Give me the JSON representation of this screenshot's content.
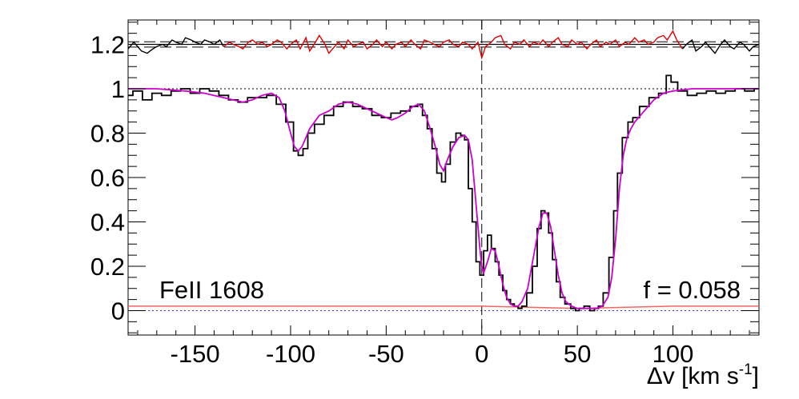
{
  "chart_data": {
    "type": "line",
    "title": "",
    "xlabel": "Δv [km s⁻¹]",
    "xlabel_main": "Δv [km s",
    "xlabel_sup": "-1",
    "xlabel_close": "]",
    "ylabel": "",
    "xlim": [
      -185,
      145
    ],
    "ylim": [
      -0.11,
      1.31
    ],
    "grid": false,
    "legend": "none",
    "x_ticks": [
      -150,
      -100,
      -50,
      0,
      50,
      100
    ],
    "x_tick_labels": [
      "-150",
      "-100",
      "-50",
      "0",
      "50",
      "100"
    ],
    "y_ticks": [
      0,
      0.2,
      0.4,
      0.6,
      0.8,
      1,
      1.2
    ],
    "y_tick_labels": [
      "0",
      "0.2",
      "0.4",
      "0.6",
      "0.8",
      "1",
      "1.2"
    ],
    "annotations": {
      "line_id": "FeII 1608",
      "fraction": "f = 0.058"
    },
    "reference_lines": {
      "continuum": 1.0,
      "zero": 0.0,
      "residual_center": 1.2,
      "residual_band": 0.012,
      "velocity_zero": 0
    },
    "colors": {
      "data": "#000000",
      "fit": "#cc00cc",
      "residual_in_fit": "#dd0000",
      "error": "#ee6666",
      "zero_line": "#3333cc"
    },
    "series": [
      {
        "key": "data",
        "x": [
          -185,
          -180,
          -175,
          -170,
          -165,
          -160,
          -155,
          -150,
          -145,
          -140,
          -135,
          -130,
          -125,
          -120,
          -115,
          -110,
          -105,
          -100,
          -97,
          -95,
          -92,
          -90,
          -85,
          -80,
          -75,
          -70,
          -65,
          -60,
          -55,
          -50,
          -45,
          -40,
          -35,
          -32,
          -30,
          -27,
          -25,
          -22,
          -20,
          -18,
          -15,
          -12,
          -10,
          -8,
          -6,
          -4,
          -2,
          0,
          2,
          4,
          6,
          8,
          10,
          12,
          14,
          16,
          18,
          20,
          22,
          25,
          28,
          30,
          32,
          34,
          36,
          38,
          40,
          42,
          45,
          48,
          50,
          52,
          55,
          58,
          60,
          62,
          65,
          68,
          70,
          72,
          75,
          78,
          80,
          85,
          90,
          95,
          98,
          100,
          105,
          110,
          115,
          120,
          125,
          130,
          135,
          140,
          145
        ],
        "y": [
          0.97,
          0.99,
          0.95,
          0.98,
          0.97,
          0.99,
          1.0,
          0.98,
          1.0,
          0.99,
          0.97,
          0.95,
          0.94,
          0.96,
          0.96,
          0.97,
          0.93,
          0.85,
          0.72,
          0.7,
          0.73,
          0.8,
          0.84,
          0.88,
          0.92,
          0.94,
          0.92,
          0.91,
          0.88,
          0.87,
          0.89,
          0.9,
          0.92,
          0.93,
          0.88,
          0.82,
          0.73,
          0.62,
          0.58,
          0.66,
          0.76,
          0.8,
          0.79,
          0.77,
          0.55,
          0.4,
          0.22,
          0.16,
          0.27,
          0.34,
          0.28,
          0.22,
          0.16,
          0.09,
          0.05,
          0.03,
          0.02,
          0.01,
          0.02,
          0.08,
          0.2,
          0.37,
          0.45,
          0.44,
          0.35,
          0.23,
          0.13,
          0.06,
          0.03,
          0.01,
          0.0,
          0.01,
          0.02,
          0.0,
          0.01,
          0.02,
          0.08,
          0.24,
          0.45,
          0.62,
          0.78,
          0.85,
          0.87,
          0.92,
          0.96,
          0.98,
          1.06,
          1.03,
          0.99,
          0.97,
          0.98,
          0.99,
          0.98,
          0.99,
          1.0,
          0.99,
          1.0
        ]
      },
      {
        "key": "fit",
        "x": [
          -185,
          -170,
          -155,
          -145,
          -135,
          -125,
          -120,
          -115,
          -110,
          -106,
          -103,
          -100,
          -98,
          -96,
          -94,
          -92,
          -90,
          -85,
          -80,
          -75,
          -70,
          -65,
          -60,
          -55,
          -50,
          -47,
          -44,
          -40,
          -36,
          -33,
          -30,
          -27,
          -24,
          -22,
          -20,
          -18,
          -15,
          -12,
          -9,
          -7,
          -5,
          -3,
          -1,
          0,
          1,
          3,
          5,
          7,
          9,
          11,
          13,
          15,
          17,
          19,
          21,
          24,
          27,
          30,
          32,
          34,
          36,
          38,
          40,
          42,
          44,
          47,
          50,
          53,
          56,
          60,
          63,
          66,
          68,
          70,
          72,
          74,
          76,
          78,
          80,
          85,
          90,
          95,
          100,
          110,
          125,
          145
        ],
        "y": [
          1.0,
          1.0,
          0.99,
          0.98,
          0.96,
          0.94,
          0.95,
          0.97,
          0.98,
          0.96,
          0.9,
          0.8,
          0.74,
          0.72,
          0.74,
          0.78,
          0.82,
          0.88,
          0.9,
          0.93,
          0.94,
          0.93,
          0.91,
          0.89,
          0.87,
          0.86,
          0.87,
          0.89,
          0.92,
          0.93,
          0.9,
          0.82,
          0.73,
          0.66,
          0.63,
          0.68,
          0.74,
          0.78,
          0.79,
          0.77,
          0.68,
          0.48,
          0.28,
          0.2,
          0.17,
          0.22,
          0.28,
          0.27,
          0.2,
          0.12,
          0.06,
          0.03,
          0.02,
          0.02,
          0.04,
          0.1,
          0.24,
          0.38,
          0.44,
          0.44,
          0.38,
          0.27,
          0.16,
          0.08,
          0.04,
          0.02,
          0.01,
          0.01,
          0.01,
          0.01,
          0.02,
          0.06,
          0.15,
          0.32,
          0.55,
          0.7,
          0.78,
          0.82,
          0.85,
          0.9,
          0.95,
          0.98,
          0.99,
          1.0,
          1.0,
          1.0
        ]
      },
      {
        "key": "error",
        "x": [
          -185,
          -100,
          0,
          50,
          100,
          145
        ],
        "y": [
          0.02,
          0.02,
          0.02,
          0.01,
          0.02,
          0.02
        ]
      },
      {
        "key": "residual",
        "x": [
          -185,
          -182,
          -178,
          -175,
          -172,
          -170,
          -167,
          -165,
          -162,
          -160,
          -157,
          -155,
          -152,
          -150,
          -147,
          -145,
          -142,
          -140,
          -137,
          -135,
          -132,
          -130,
          -127,
          -125,
          -122,
          -120,
          -117,
          -115,
          -112,
          -110,
          -107,
          -105,
          -102,
          -100,
          -97,
          -95,
          -92,
          -90,
          -87,
          -85,
          -82,
          -80,
          -77,
          -75,
          -72,
          -70,
          -67,
          -65,
          -62,
          -60,
          -57,
          -55,
          -52,
          -50,
          -47,
          -45,
          -42,
          -40,
          -37,
          -35,
          -32,
          -30,
          -27,
          -25,
          -22,
          -20,
          -17,
          -15,
          -12,
          -10,
          -7,
          -5,
          -2,
          0,
          2,
          5,
          7,
          10,
          12,
          15,
          17,
          20,
          22,
          25,
          27,
          30,
          32,
          35,
          37,
          40,
          42,
          45,
          47,
          50,
          52,
          55,
          57,
          60,
          62,
          65,
          67,
          70,
          72,
          75,
          77,
          80,
          82,
          85,
          87,
          90,
          92,
          95,
          97,
          100,
          102,
          105,
          107,
          110,
          112,
          115,
          117,
          120,
          122,
          125,
          127,
          130,
          132,
          135,
          137,
          140,
          142,
          145
        ],
        "y": [
          1.18,
          1.21,
          1.17,
          1.16,
          1.18,
          1.19,
          1.2,
          1.19,
          1.22,
          1.21,
          1.2,
          1.23,
          1.22,
          1.21,
          1.2,
          1.22,
          1.21,
          1.2,
          1.22,
          1.19,
          1.21,
          1.2,
          1.19,
          1.18,
          1.21,
          1.22,
          1.2,
          1.21,
          1.19,
          1.2,
          1.22,
          1.21,
          1.18,
          1.2,
          1.22,
          1.18,
          1.23,
          1.17,
          1.21,
          1.24,
          1.2,
          1.16,
          1.19,
          1.21,
          1.18,
          1.22,
          1.19,
          1.2,
          1.21,
          1.18,
          1.2,
          1.22,
          1.19,
          1.21,
          1.18,
          1.2,
          1.21,
          1.19,
          1.22,
          1.2,
          1.18,
          1.22,
          1.21,
          1.2,
          1.19,
          1.21,
          1.22,
          1.2,
          1.19,
          1.21,
          1.2,
          1.18,
          1.21,
          1.14,
          1.19,
          1.21,
          1.23,
          1.24,
          1.2,
          1.18,
          1.21,
          1.2,
          1.22,
          1.19,
          1.21,
          1.2,
          1.22,
          1.19,
          1.21,
          1.23,
          1.2,
          1.19,
          1.22,
          1.2,
          1.21,
          1.18,
          1.2,
          1.22,
          1.19,
          1.21,
          1.2,
          1.22,
          1.19,
          1.21,
          1.2,
          1.23,
          1.21,
          1.22,
          1.2,
          1.21,
          1.23,
          1.24,
          1.22,
          1.26,
          1.22,
          1.18,
          1.2,
          1.22,
          1.17,
          1.19,
          1.21,
          1.18,
          1.16,
          1.2,
          1.22,
          1.19,
          1.18,
          1.21,
          1.2,
          1.17,
          1.19,
          1.2
        ]
      }
    ]
  }
}
